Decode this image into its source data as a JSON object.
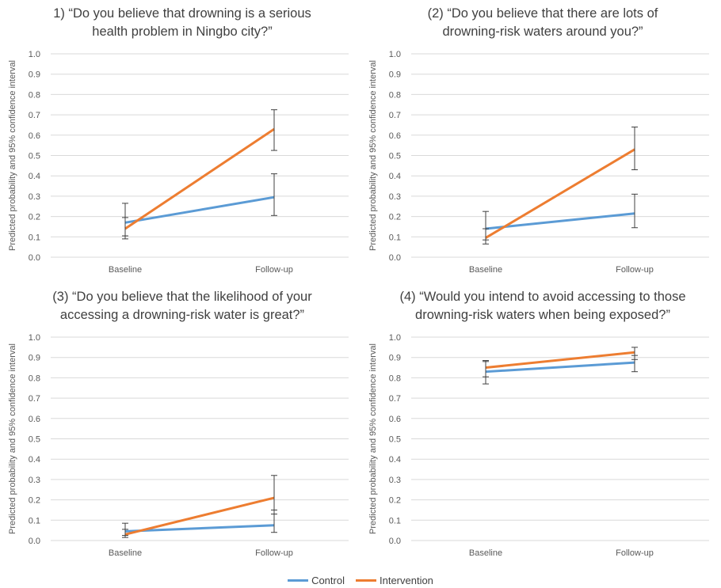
{
  "legend": {
    "control_label": "Control",
    "intervention_label": "Intervention"
  },
  "colors": {
    "control": "#5B9BD5",
    "intervention": "#ED7D31",
    "errorbar": "#404040",
    "grid": "#D9D9D9"
  },
  "chart_data": [
    {
      "type": "line",
      "title_line1": "1) “Do you believe that drowning is a serious",
      "title_line2": "health problem in Ningbo city?”",
      "ylabel": "Predicted probability and 95% confidence interval",
      "xlabel": "",
      "categories": [
        "Baseline",
        "Follow-up"
      ],
      "ylim": [
        0,
        1
      ],
      "yticks": [
        "0.0",
        "0.1",
        "0.2",
        "0.3",
        "0.4",
        "0.5",
        "0.6",
        "0.7",
        "0.8",
        "0.9",
        "1.0"
      ],
      "grid": true,
      "series": [
        {
          "name": "Control",
          "values": [
            0.17,
            0.295
          ],
          "ci_low": [
            0.105,
            0.205
          ],
          "ci_high": [
            0.265,
            0.41
          ]
        },
        {
          "name": "Intervention",
          "values": [
            0.14,
            0.63
          ],
          "ci_low": [
            0.09,
            0.525
          ],
          "ci_high": [
            0.195,
            0.725
          ]
        }
      ]
    },
    {
      "type": "line",
      "title_line1": "(2) “Do you believe that there are lots of",
      "title_line2": "drowning-risk waters around you?”",
      "ylabel": "Predicted probability and 95% confidence interval",
      "xlabel": "",
      "categories": [
        "Baseline",
        "Follow-up"
      ],
      "ylim": [
        0,
        1
      ],
      "yticks": [
        "0.0",
        "0.1",
        "0.2",
        "0.3",
        "0.4",
        "0.5",
        "0.6",
        "0.7",
        "0.8",
        "0.9",
        "1.0"
      ],
      "grid": true,
      "series": [
        {
          "name": "Control",
          "values": [
            0.14,
            0.215
          ],
          "ci_low": [
            0.085,
            0.145
          ],
          "ci_high": [
            0.225,
            0.31
          ]
        },
        {
          "name": "Intervention",
          "values": [
            0.095,
            0.53
          ],
          "ci_low": [
            0.065,
            0.43
          ],
          "ci_high": [
            0.14,
            0.64
          ]
        }
      ]
    },
    {
      "type": "line",
      "title_line1": "(3) “Do you believe that the likelihood of your",
      "title_line2": "accessing a drowning-risk water is great?”",
      "ylabel": "Predicted probability and 95% confidence interval",
      "xlabel": "",
      "categories": [
        "Baseline",
        "Follow-up"
      ],
      "ylim": [
        0,
        1
      ],
      "yticks": [
        "0.0",
        "0.1",
        "0.2",
        "0.3",
        "0.4",
        "0.5",
        "0.6",
        "0.7",
        "0.8",
        "0.9",
        "1.0"
      ],
      "grid": true,
      "series": [
        {
          "name": "Control",
          "values": [
            0.045,
            0.075
          ],
          "ci_low": [
            0.025,
            0.04
          ],
          "ci_high": [
            0.085,
            0.15
          ]
        },
        {
          "name": "Intervention",
          "values": [
            0.03,
            0.21
          ],
          "ci_low": [
            0.015,
            0.13
          ],
          "ci_high": [
            0.055,
            0.32
          ]
        }
      ]
    },
    {
      "type": "line",
      "title_line1": "(4) “Would you intend to avoid accessing to those",
      "title_line2": "drowning-risk waters when being exposed?”",
      "ylabel": "Predicted probability and 95% confidence interval",
      "xlabel": "",
      "categories": [
        "Baseline",
        "Follow-up"
      ],
      "ylim": [
        0,
        1
      ],
      "yticks": [
        "0.0",
        "0.1",
        "0.2",
        "0.3",
        "0.4",
        "0.5",
        "0.6",
        "0.7",
        "0.8",
        "0.9",
        "1.0"
      ],
      "grid": true,
      "series": [
        {
          "name": "Control",
          "values": [
            0.83,
            0.875
          ],
          "ci_low": [
            0.77,
            0.83
          ],
          "ci_high": [
            0.88,
            0.91
          ]
        },
        {
          "name": "Intervention",
          "values": [
            0.85,
            0.925
          ],
          "ci_low": [
            0.805,
            0.89
          ],
          "ci_high": [
            0.885,
            0.95
          ]
        }
      ]
    }
  ]
}
